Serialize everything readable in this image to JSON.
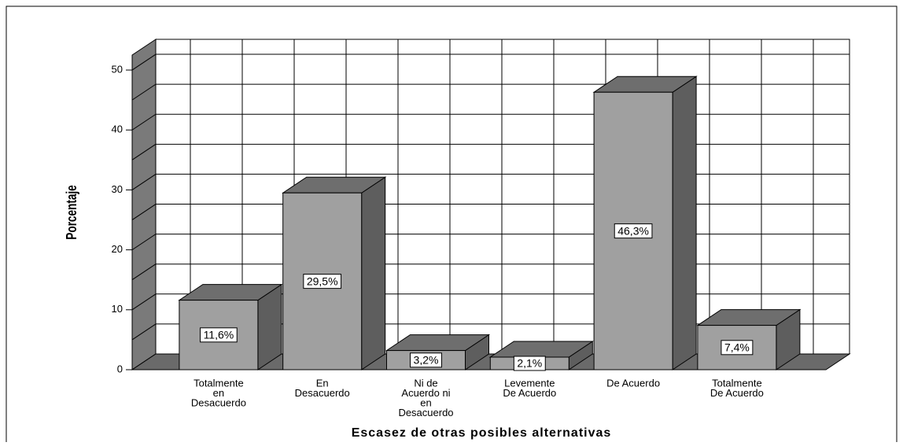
{
  "chart_data": {
    "type": "bar3d",
    "title": "Escasez de otras posibles alternativas",
    "y_label": "Porcentaje",
    "categories": [
      [
        "Totalmente",
        "en",
        "Desacuerdo"
      ],
      [
        "En",
        "Desacuerdo"
      ],
      [
        "Ni de",
        "Acuerdo ni",
        "en",
        "Desacuerdo"
      ],
      [
        "Levemente",
        "De Acuerdo"
      ],
      [
        "De Acuerdo"
      ],
      [
        "Totalmente",
        "De Acuerdo"
      ]
    ],
    "values": [
      11.6,
      29.5,
      3.2,
      2.1,
      46.3,
      7.4
    ],
    "value_labels": [
      "11,6%",
      "29,5%",
      "3,2%",
      "2,1%",
      "46,3%",
      "7,4%"
    ],
    "ylim": [
      0,
      52.5
    ],
    "yticks": [
      0,
      10,
      20,
      30,
      40,
      50
    ],
    "minor_yticks": [
      5,
      15,
      25,
      35,
      45
    ],
    "grid": true,
    "color": "#a0a0a0"
  }
}
